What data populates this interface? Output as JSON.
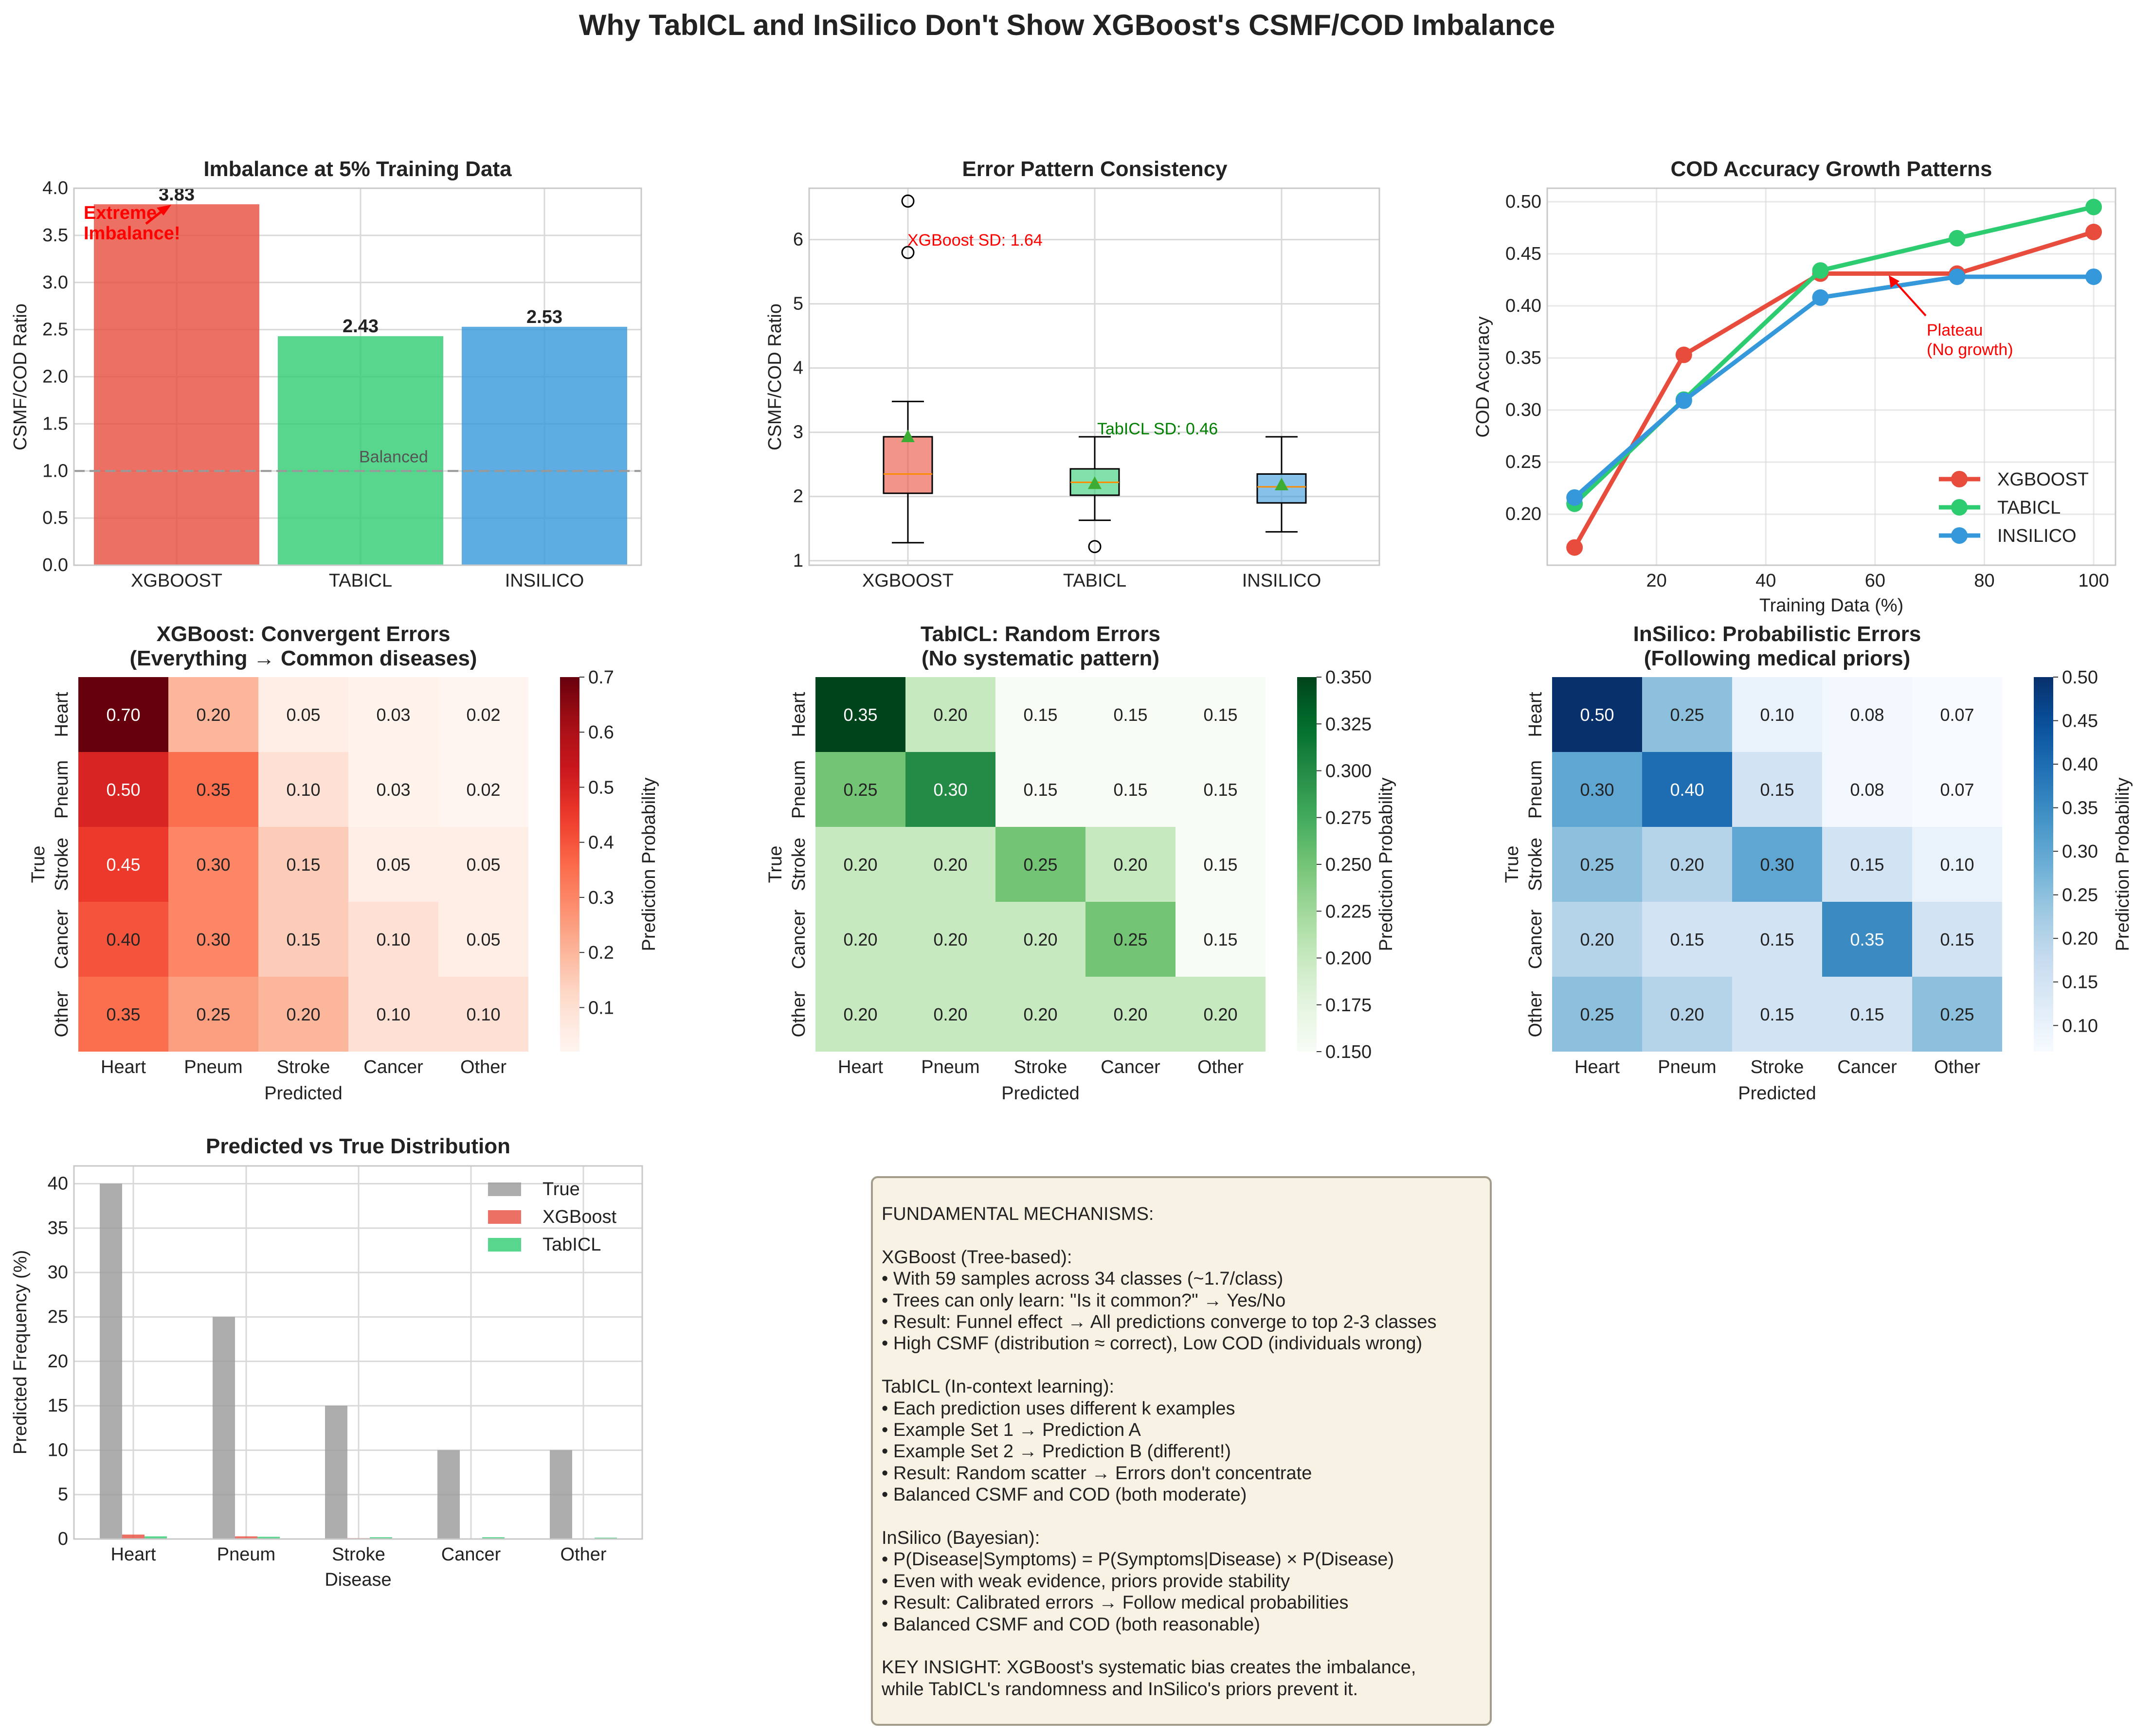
{
  "suptitle": "Why TabICL and InSilico Don't Show XGBoost's CSMF/COD Imbalance",
  "chart_data": [
    {
      "id": "imbalance",
      "type": "bar",
      "title": "Imbalance at 5% Training Data",
      "xlabel": "",
      "ylabel": "CSMF/COD Ratio",
      "categories": [
        "XGBOOST",
        "TABICL",
        "INSILICO"
      ],
      "values": [
        3.83,
        2.43,
        2.53
      ],
      "value_labels": [
        "3.83",
        "2.43",
        "2.53"
      ],
      "colors": [
        "#e74c3c",
        "#2ecc71",
        "#3498db"
      ],
      "ylim": [
        0,
        4.0
      ],
      "yticks": [
        0.0,
        0.5,
        1.0,
        1.5,
        2.0,
        2.5,
        3.0,
        3.5,
        4.0
      ],
      "ytick_labels": [
        "0.0",
        "0.5",
        "1.0",
        "1.5",
        "2.0",
        "2.5",
        "3.0",
        "3.5",
        "4.0"
      ],
      "reference_line": {
        "y": 1.0,
        "label": "Balanced"
      },
      "annotation": {
        "text": [
          "Extreme",
          "Imbalance!"
        ],
        "color": "#ff0000"
      },
      "grid": true
    },
    {
      "id": "error-boxplot",
      "type": "box",
      "title": "Error Pattern Consistency",
      "xlabel": "",
      "ylabel": "CSMF/COD Ratio",
      "categories": [
        "XGBOOST",
        "TABICL",
        "INSILICO"
      ],
      "colors": [
        "#e74c3c",
        "#2ecc71",
        "#3498db"
      ],
      "boxes": [
        {
          "whisker_low": 1.28,
          "q1": 2.05,
          "median": 2.35,
          "q3": 2.93,
          "whisker_high": 3.48,
          "mean": 2.93,
          "outliers": [
            5.8,
            6.6
          ]
        },
        {
          "whisker_low": 1.63,
          "q1": 2.02,
          "median": 2.22,
          "q3": 2.43,
          "whisker_high": 2.93,
          "mean": 2.2,
          "outliers": [
            1.22
          ]
        },
        {
          "whisker_low": 1.45,
          "q1": 1.9,
          "median": 2.15,
          "q3": 2.35,
          "whisker_high": 2.93,
          "mean": 2.18,
          "outliers": []
        }
      ],
      "ylim": [
        0.93,
        6.8
      ],
      "yticks": [
        1,
        2,
        3,
        4,
        5,
        6
      ],
      "ytick_labels": [
        "1",
        "2",
        "3",
        "4",
        "5",
        "6"
      ],
      "annotations": [
        {
          "text": "XGBoost SD: 1.64",
          "color": "#ff0000"
        },
        {
          "text": "TabICL SD: 0.46",
          "color": "#008000"
        }
      ],
      "grid": true
    },
    {
      "id": "cod-growth",
      "type": "line",
      "title": "COD Accuracy Growth Patterns",
      "xlabel": "Training Data (%)",
      "ylabel": "COD Accuracy",
      "x": [
        5,
        25,
        50,
        75,
        100
      ],
      "series": [
        {
          "name": "XGBOOST",
          "color": "#e74c3c",
          "values": [
            0.168,
            0.353,
            0.431,
            0.431,
            0.471
          ]
        },
        {
          "name": "TABICL",
          "color": "#2ecc71",
          "values": [
            0.21,
            0.31,
            0.434,
            0.465,
            0.495
          ]
        },
        {
          "name": "INSILICO",
          "color": "#3498db",
          "values": [
            0.216,
            0.309,
            0.408,
            0.428,
            0.428
          ]
        }
      ],
      "xlim": [
        0,
        104
      ],
      "ylim": [
        0.151,
        0.513
      ],
      "xticks": [
        20,
        40,
        60,
        80,
        100
      ],
      "xtick_labels": [
        "20",
        "40",
        "60",
        "80",
        "100"
      ],
      "yticks": [
        0.2,
        0.25,
        0.3,
        0.35,
        0.4,
        0.45,
        0.5
      ],
      "ytick_labels": [
        "0.20",
        "0.25",
        "0.30",
        "0.35",
        "0.40",
        "0.45",
        "0.50"
      ],
      "annotation": {
        "text": [
          "Plateau",
          "(No growth)"
        ],
        "color": "#ff0000"
      },
      "legend_position": "lower-right",
      "grid": true
    },
    {
      "id": "hm-xgb",
      "type": "heatmap",
      "title": [
        "XGBoost: Convergent Errors",
        "(Everything → Common diseases)"
      ],
      "xlabel": "Predicted",
      "ylabel": "True",
      "x_categories": [
        "Heart",
        "Pneum",
        "Stroke",
        "Cancer",
        "Other"
      ],
      "y_categories": [
        "Heart",
        "Pneum",
        "Stroke",
        "Cancer",
        "Other"
      ],
      "values": [
        [
          0.7,
          0.2,
          0.05,
          0.03,
          0.02
        ],
        [
          0.5,
          0.35,
          0.1,
          0.03,
          0.02
        ],
        [
          0.45,
          0.3,
          0.15,
          0.05,
          0.05
        ],
        [
          0.4,
          0.3,
          0.15,
          0.1,
          0.05
        ],
        [
          0.35,
          0.25,
          0.2,
          0.1,
          0.1
        ]
      ],
      "value_labels": [
        [
          "0.70",
          "0.20",
          "0.05",
          "0.03",
          "0.02"
        ],
        [
          "0.50",
          "0.35",
          "0.10",
          "0.03",
          "0.02"
        ],
        [
          "0.45",
          "0.30",
          "0.15",
          "0.05",
          "0.05"
        ],
        [
          "0.40",
          "0.30",
          "0.15",
          "0.10",
          "0.05"
        ],
        [
          "0.35",
          "0.25",
          "0.20",
          "0.10",
          "0.10"
        ]
      ],
      "colormap": "Reds",
      "vmin": 0.02,
      "vmax": 0.7,
      "colorbar_label": "Prediction Probability",
      "colorbar_ticks": [
        0.1,
        0.2,
        0.3,
        0.4,
        0.5,
        0.6,
        0.7
      ],
      "colorbar_tick_labels": [
        "0.1",
        "0.2",
        "0.3",
        "0.4",
        "0.5",
        "0.6",
        "0.7"
      ]
    },
    {
      "id": "hm-tab",
      "type": "heatmap",
      "title": [
        "TabICL: Random Errors",
        "(No systematic pattern)"
      ],
      "xlabel": "Predicted",
      "ylabel": "True",
      "x_categories": [
        "Heart",
        "Pneum",
        "Stroke",
        "Cancer",
        "Other"
      ],
      "y_categories": [
        "Heart",
        "Pneum",
        "Stroke",
        "Cancer",
        "Other"
      ],
      "values": [
        [
          0.35,
          0.2,
          0.15,
          0.15,
          0.15
        ],
        [
          0.25,
          0.3,
          0.15,
          0.15,
          0.15
        ],
        [
          0.2,
          0.2,
          0.25,
          0.2,
          0.15
        ],
        [
          0.2,
          0.2,
          0.2,
          0.25,
          0.15
        ],
        [
          0.2,
          0.2,
          0.2,
          0.2,
          0.2
        ]
      ],
      "value_labels": [
        [
          "0.35",
          "0.20",
          "0.15",
          "0.15",
          "0.15"
        ],
        [
          "0.25",
          "0.30",
          "0.15",
          "0.15",
          "0.15"
        ],
        [
          "0.20",
          "0.20",
          "0.25",
          "0.20",
          "0.15"
        ],
        [
          "0.20",
          "0.20",
          "0.20",
          "0.25",
          "0.15"
        ],
        [
          "0.20",
          "0.20",
          "0.20",
          "0.20",
          "0.20"
        ]
      ],
      "colormap": "Greens",
      "vmin": 0.15,
      "vmax": 0.35,
      "colorbar_label": "Prediction Probability",
      "colorbar_ticks": [
        0.15,
        0.175,
        0.2,
        0.225,
        0.25,
        0.275,
        0.3,
        0.325,
        0.35
      ],
      "colorbar_tick_labels": [
        "0.150",
        "0.175",
        "0.200",
        "0.225",
        "0.250",
        "0.275",
        "0.300",
        "0.325",
        "0.350"
      ]
    },
    {
      "id": "hm-ins",
      "type": "heatmap",
      "title": [
        "InSilico: Probabilistic Errors",
        "(Following medical priors)"
      ],
      "xlabel": "Predicted",
      "ylabel": "True",
      "x_categories": [
        "Heart",
        "Pneum",
        "Stroke",
        "Cancer",
        "Other"
      ],
      "y_categories": [
        "Heart",
        "Pneum",
        "Stroke",
        "Cancer",
        "Other"
      ],
      "values": [
        [
          0.5,
          0.25,
          0.1,
          0.08,
          0.07
        ],
        [
          0.3,
          0.4,
          0.15,
          0.08,
          0.07
        ],
        [
          0.25,
          0.2,
          0.3,
          0.15,
          0.1
        ],
        [
          0.2,
          0.15,
          0.15,
          0.35,
          0.15
        ],
        [
          0.25,
          0.2,
          0.15,
          0.15,
          0.25
        ]
      ],
      "value_labels": [
        [
          "0.50",
          "0.25",
          "0.10",
          "0.08",
          "0.07"
        ],
        [
          "0.30",
          "0.40",
          "0.15",
          "0.08",
          "0.07"
        ],
        [
          "0.25",
          "0.20",
          "0.30",
          "0.15",
          "0.10"
        ],
        [
          "0.20",
          "0.15",
          "0.15",
          "0.35",
          "0.15"
        ],
        [
          "0.25",
          "0.20",
          "0.15",
          "0.15",
          "0.25"
        ]
      ],
      "colormap": "Blues",
      "vmin": 0.07,
      "vmax": 0.5,
      "colorbar_label": "Prediction Probability",
      "colorbar_ticks": [
        0.1,
        0.15,
        0.2,
        0.25,
        0.3,
        0.35,
        0.4,
        0.45,
        0.5
      ],
      "colorbar_tick_labels": [
        "0.10",
        "0.15",
        "0.20",
        "0.25",
        "0.30",
        "0.35",
        "0.40",
        "0.45",
        "0.50"
      ]
    },
    {
      "id": "distribution",
      "type": "bar",
      "title": "Predicted vs True Distribution",
      "xlabel": "Disease",
      "ylabel": "Predicted Frequency (%)",
      "categories": [
        "Heart",
        "Pneum",
        "Stroke",
        "Cancer",
        "Other"
      ],
      "series": [
        {
          "name": "True",
          "color": "#999999",
          "values": [
            40,
            25,
            15,
            10,
            10
          ]
        },
        {
          "name": "XGBoost",
          "color": "#e74c3c",
          "values": [
            0.5,
            0.3,
            0.1,
            0.05,
            0.05
          ]
        },
        {
          "name": "TabICL",
          "color": "#2ecc71",
          "values": [
            0.3,
            0.25,
            0.2,
            0.2,
            0.15
          ]
        }
      ],
      "ylim": [
        0,
        42
      ],
      "yticks": [
        0,
        5,
        10,
        15,
        20,
        25,
        30,
        35,
        40
      ],
      "ytick_labels": [
        "0",
        "5",
        "10",
        "15",
        "20",
        "25",
        "30",
        "35",
        "40"
      ],
      "legend_position": "top-right",
      "grid": true
    }
  ],
  "notes": [
    "FUNDAMENTAL MECHANISMS:",
    "",
    "XGBoost (Tree-based):",
    "• With 59 samples across 34 classes (~1.7/class)",
    "• Trees can only learn: \"Is it common?\" → Yes/No",
    "• Result: Funnel effect → All predictions converge to top 2-3 classes",
    "• High CSMF (distribution ≈ correct), Low COD (individuals wrong)",
    "",
    "TabICL (In-context learning):",
    "• Each prediction uses different k examples",
    "• Example Set 1 → Prediction A",
    "• Example Set 2 → Prediction B (different!)",
    "• Result: Random scatter → Errors don't concentrate",
    "• Balanced CSMF and COD (both moderate)",
    "",
    "InSilico (Bayesian):",
    "• P(Disease|Symptoms) = P(Symptoms|Disease) × P(Disease)",
    "• Even with weak evidence, priors provide stability",
    "• Result: Calibrated errors → Follow medical probabilities",
    "• Balanced CSMF and COD (both reasonable)",
    "",
    "KEY INSIGHT: XGBoost's systematic bias creates the imbalance,",
    "while TabICL's randomness and InSilico's priors prevent it."
  ]
}
